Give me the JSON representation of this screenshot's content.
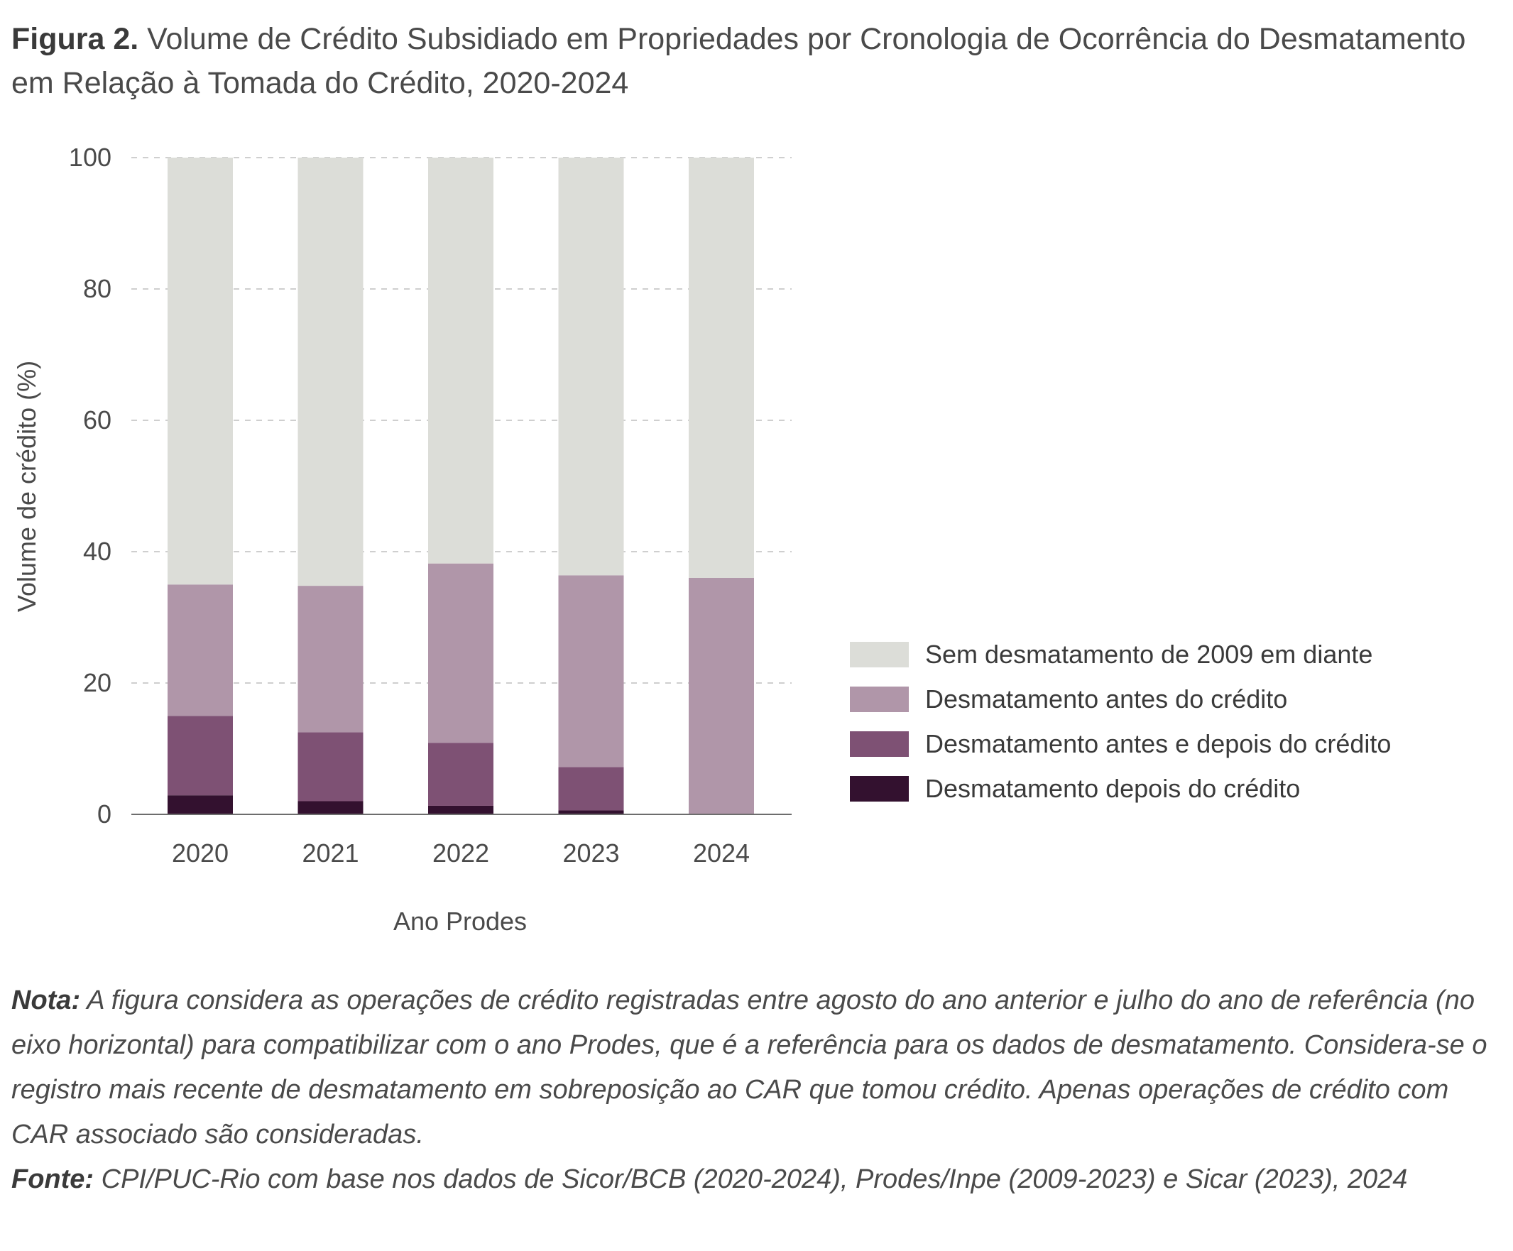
{
  "figure": {
    "label": "Figura 2.",
    "title": "Volume de Crédito Subsidiado em Propriedades por Cronologia de Ocorrência do Desmatamento em Relação à Tomada do Crédito, 2020-2024"
  },
  "chart_data": {
    "type": "bar",
    "stacked": true,
    "categories": [
      "2020",
      "2021",
      "2022",
      "2023",
      "2024"
    ],
    "xlabel": "Ano Prodes",
    "ylabel": "Volume de crédito (%)",
    "ylim": [
      0,
      100
    ],
    "yticks": [
      0,
      20,
      40,
      60,
      80,
      100
    ],
    "grid": "horizontal dashed",
    "legend_position": "right",
    "series": [
      {
        "name": "Desmatamento depois do crédito",
        "color": "#33112f",
        "values": [
          2.9,
          2.0,
          1.3,
          0.6,
          0.0
        ]
      },
      {
        "name": "Desmatamento antes e depois do crédito",
        "color": "#7e5174",
        "values": [
          12.1,
          10.5,
          9.6,
          6.6,
          0.0
        ]
      },
      {
        "name": "Desmatamento antes do crédito",
        "color": "#b096a9",
        "values": [
          20.0,
          22.3,
          27.3,
          29.2,
          36.0
        ]
      },
      {
        "name": "Sem desmatamento de 2009 em diante",
        "color": "#dcddd8",
        "values": [
          65.0,
          65.2,
          61.8,
          63.6,
          64.0
        ]
      }
    ],
    "legend_order": [
      "Sem desmatamento de 2009 em diante",
      "Desmatamento antes do crédito",
      "Desmatamento antes e depois do crédito",
      "Desmatamento depois do crédito"
    ]
  },
  "note": {
    "label": "Nota:",
    "text": "A figura considera as operações de crédito registradas entre agosto do ano anterior e julho do ano de referência (no eixo horizontal) para compatibilizar com o ano Prodes, que é a referência para os dados de desmatamento. Considera-se o registro mais recente de desmatamento em sobreposição ao CAR que tomou crédito. Apenas operações de crédito com CAR associado são consideradas."
  },
  "source": {
    "label": "Fonte:",
    "text": "CPI/PUC-Rio com base nos dados de Sicor/BCB (2020-2024), Prodes/Inpe (2009-2023) e Sicar (2023), 2024"
  }
}
